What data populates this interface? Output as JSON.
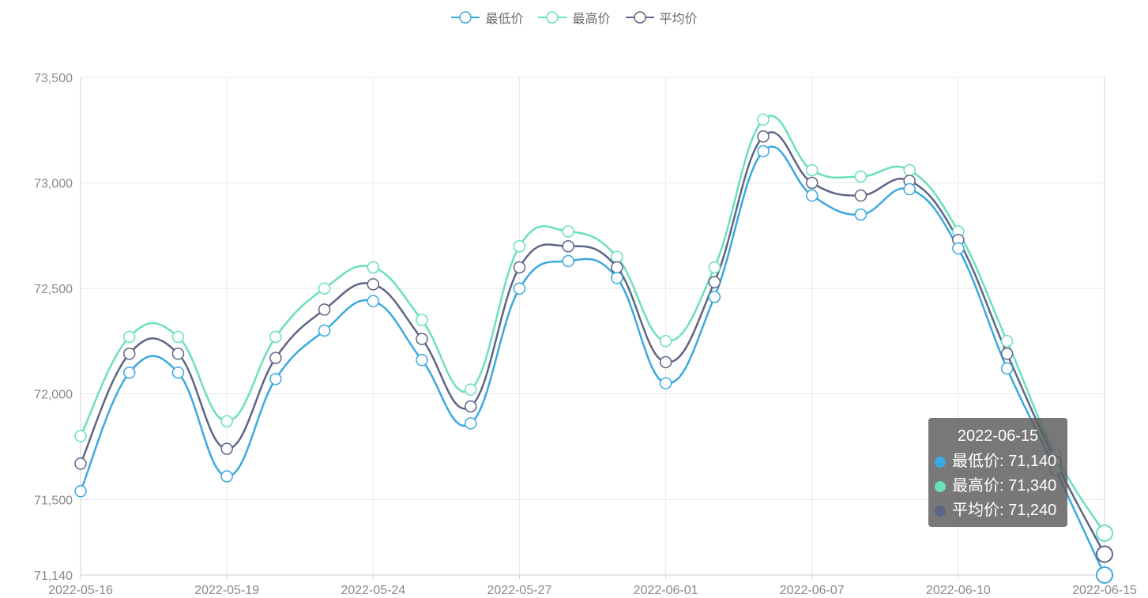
{
  "legend": [
    {
      "name": "最低价",
      "color": "#3ba9de"
    },
    {
      "name": "最高价",
      "color": "#6ae0bd"
    },
    {
      "name": "平均价",
      "color": "#5e6585"
    }
  ],
  "tooltip": {
    "title": "2022-06-15",
    "rows": [
      {
        "label": "最低价: 71,140",
        "color": "#3ba9de"
      },
      {
        "label": "最高价: 71,340",
        "color": "#6ae0bd"
      },
      {
        "label": "平均价: 71,240",
        "color": "#5e6585"
      }
    ]
  },
  "chart_data": {
    "type": "line",
    "smooth": true,
    "grid": true,
    "legend_position": "top-center",
    "ylim": [
      71140,
      73500
    ],
    "yticks": [
      71140,
      71500,
      72000,
      72500,
      73000,
      73500
    ],
    "ytick_labels": [
      "71,140",
      "71,500",
      "72,000",
      "72,500",
      "73,000",
      "73,500"
    ],
    "x": [
      "2022-05-16",
      "2022-05-17",
      "2022-05-18",
      "2022-05-19",
      "2022-05-20",
      "2022-05-23",
      "2022-05-24",
      "2022-05-25",
      "2022-05-26",
      "2022-05-27",
      "2022-05-30",
      "2022-05-31",
      "2022-06-01",
      "2022-06-02",
      "2022-06-06",
      "2022-06-07",
      "2022-06-08",
      "2022-06-09",
      "2022-06-10",
      "2022-06-13",
      "2022-06-14",
      "2022-06-15"
    ],
    "xtick_labels": [
      "2022-05-16",
      "2022-05-19",
      "2022-05-24",
      "2022-05-27",
      "2022-06-01",
      "2022-06-07",
      "2022-06-10",
      "2022-06-15"
    ],
    "series": [
      {
        "name": "最低价",
        "color": "#3ba9de",
        "values": [
          71540,
          72100,
          72100,
          71610,
          72070,
          72300,
          72440,
          72160,
          71860,
          72500,
          72630,
          72550,
          72050,
          72460,
          73150,
          72940,
          72850,
          72970,
          72690,
          72120,
          71640,
          71140
        ]
      },
      {
        "name": "最高价",
        "color": "#6ae0bd",
        "values": [
          71800,
          72270,
          72270,
          71870,
          72270,
          72500,
          72600,
          72350,
          72020,
          72700,
          72770,
          72650,
          72250,
          72600,
          73300,
          73060,
          73030,
          73060,
          72770,
          72250,
          71710,
          71340
        ]
      },
      {
        "name": "平均价",
        "color": "#5e6585",
        "values": [
          71670,
          72190,
          72190,
          71740,
          72170,
          72400,
          72520,
          72260,
          71940,
          72600,
          72700,
          72600,
          72150,
          72530,
          73220,
          73000,
          72940,
          73010,
          72730,
          72190,
          71680,
          71240
        ]
      }
    ]
  }
}
